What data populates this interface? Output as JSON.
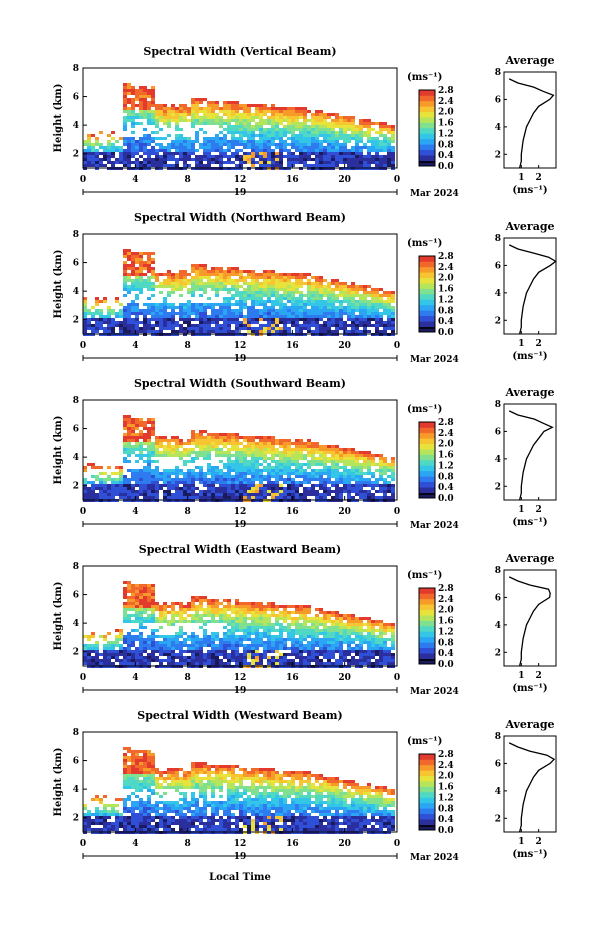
{
  "xaxis": {
    "ticks": [
      "0",
      "4",
      "8",
      "12",
      "16",
      "20",
      "0"
    ],
    "day_label": "19",
    "month_label": "Mar 2024",
    "title": "Local Time"
  },
  "yaxis": {
    "title": "Height (km)",
    "ticks": [
      "2",
      "4",
      "6",
      "8"
    ]
  },
  "colorbar": {
    "unit": "(ms⁻¹)",
    "ticks": [
      "0.0",
      "0.4",
      "0.8",
      "1.2",
      "1.6",
      "2.0",
      "2.4",
      "2.8"
    ],
    "colors": [
      "#1a1a5e",
      "#2b2f9e",
      "#2f4fd6",
      "#2e7bf0",
      "#2aa6f5",
      "#33c6e6",
      "#4fd8c4",
      "#7fe08f",
      "#b5e55a",
      "#e7e33b",
      "#f7c531",
      "#f79a2a",
      "#f2682b",
      "#e23a2c"
    ]
  },
  "average_panel": {
    "title": "Average",
    "unit_label": "(ms⁻¹)"
  },
  "panels": [
    {
      "title": "Spectral Width (Vertical Beam)",
      "avg_xticks": [
        "1",
        "2"
      ]
    },
    {
      "title": "Spectral Width (Northward Beam)",
      "avg_xticks": [
        "1",
        "2"
      ]
    },
    {
      "title": "Spectral Width (Southward Beam)",
      "avg_xticks": [
        "1",
        "2"
      ]
    },
    {
      "title": "Spectral Width (Eastward Beam)",
      "avg_xticks": [
        "1",
        "2"
      ]
    },
    {
      "title": "Spectral Width (Westward Beam)",
      "avg_xticks": [
        "1",
        "2"
      ]
    }
  ],
  "chart_data": {
    "type": "heatmap",
    "x_unit": "Local Time (h)",
    "xlim": [
      0,
      24
    ],
    "ylim": [
      1,
      8
    ],
    "colorbar_range": [
      0.0,
      2.8
    ],
    "average_xlim": [
      0,
      3
    ],
    "average_ylim": [
      1,
      8
    ],
    "average_profile": {
      "height_km": [
        1.0,
        1.5,
        2.0,
        2.5,
        3.0,
        3.5,
        4.0,
        4.5,
        5.0,
        5.5,
        6.0,
        6.3,
        6.6,
        6.9,
        7.2,
        7.5
      ],
      "width_ms": [
        0.9,
        1.0,
        1.0,
        1.05,
        1.1,
        1.2,
        1.3,
        1.5,
        1.7,
        2.0,
        2.5,
        2.8,
        2.4,
        1.6,
        0.8,
        0.3
      ]
    }
  }
}
